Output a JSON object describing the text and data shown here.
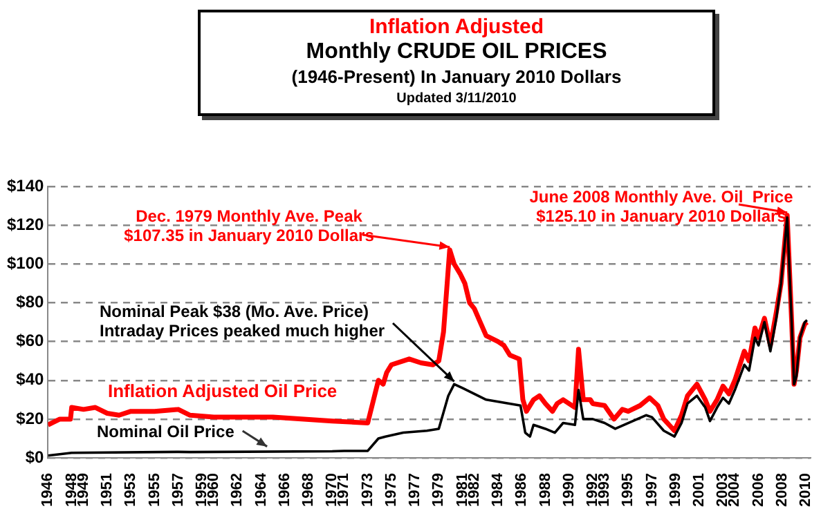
{
  "chart_data": {
    "type": "line",
    "title": "Inflation Adjusted\nMonthly CRUDE OIL PRICES",
    "subtitle": "(1946-Present) In January 2010 Dollars",
    "xlim": [
      1946,
      2010.4
    ],
    "xticks": [
      1946,
      1948,
      1949,
      1951,
      1953,
      1955,
      1957,
      1959,
      1960,
      1962,
      1964,
      1966,
      1968,
      1970,
      1971,
      1973,
      1975,
      1977,
      1979,
      1981,
      1982,
      1984,
      1986,
      1988,
      1990,
      1992,
      1993,
      1995,
      1997,
      1999,
      2001,
      2003,
      2004,
      2006,
      2008,
      2010
    ],
    "ylim": [
      0,
      140
    ],
    "yticks": [
      {
        "value": 0,
        "label": "$0"
      },
      {
        "value": 20,
        "label": "$20"
      },
      {
        "value": 40,
        "label": "$40"
      },
      {
        "value": 60,
        "label": "$60"
      },
      {
        "value": 80,
        "label": "$80"
      },
      {
        "value": 100,
        "label": "$100"
      },
      {
        "value": 120,
        "label": "$120"
      },
      {
        "value": 140,
        "label": "$140"
      }
    ],
    "grid": "y",
    "legend": false,
    "marker": "none",
    "line_style": "solid",
    "series": [
      {
        "name": "Inflation Adjusted Oil Price",
        "color": "#ff0000",
        "x": [
          1946,
          1947,
          1947.9,
          1948,
          1949,
          1950,
          1951,
          1952,
          1953,
          1955,
          1957,
          1958,
          1960,
          1965,
          1970,
          1973,
          1973.9,
          1974.3,
          1974.6,
          1975,
          1976.5,
          1977.5,
          1978.5,
          1979,
          1979.4,
          1979.92,
          1980.3,
          1980.8,
          1981.2,
          1981.6,
          1982,
          1982.5,
          1983,
          1984,
          1984.5,
          1985,
          1985.8,
          1986.1,
          1986.4,
          1987,
          1987.5,
          1988,
          1988.6,
          1989,
          1989.5,
          1990.5,
          1990.8,
          1991.2,
          1991.8,
          1992,
          1993,
          1993.8,
          1994.5,
          1995,
          1996,
          1996.8,
          1997.5,
          1998,
          1998.9,
          1999.5,
          2000,
          2000.8,
          2001.5,
          2001.9,
          2002.5,
          2003,
          2003.5,
          2004,
          2004.8,
          2005.2,
          2005.7,
          2006,
          2006.5,
          2007,
          2007.5,
          2007.9,
          2008.42,
          2008.8,
          2009,
          2009.2,
          2009.5,
          2009.9,
          2010.1
        ],
        "values": [
          17,
          20,
          20,
          26,
          25,
          26,
          23,
          22,
          24,
          24,
          25,
          22,
          21,
          21,
          19,
          18,
          40,
          38,
          44,
          48,
          51,
          49,
          48,
          50,
          65,
          107.35,
          100,
          95,
          90,
          80,
          77,
          70,
          63,
          60,
          58,
          53,
          51,
          30,
          24,
          30,
          32,
          28,
          24,
          28,
          30,
          26,
          56,
          30,
          30,
          28,
          27,
          20,
          25,
          24,
          27,
          31,
          27,
          20,
          14,
          22,
          32,
          38,
          30,
          24,
          30,
          37,
          33,
          40,
          55,
          50,
          67,
          62,
          72,
          58,
          75,
          90,
          125.1,
          70,
          38,
          45,
          62,
          69,
          70
        ]
      },
      {
        "name": "Nominal Oil Price",
        "color": "#000000",
        "x": [
          1946,
          1947,
          1948,
          1957,
          1958,
          1970,
          1971,
          1973,
          1973.9,
          1974.5,
          1976,
          1978,
          1979,
          1979.8,
          1980.3,
          1981,
          1982,
          1983,
          1985.9,
          1986.3,
          1986.7,
          1987,
          1988,
          1988.8,
          1989.5,
          1990.5,
          1990.8,
          1991.2,
          1992,
          1993,
          1993.9,
          1995,
          1996.5,
          1997,
          1998,
          1998.9,
          1999.5,
          2000,
          2000.8,
          2001.5,
          2001.9,
          2002.5,
          2003,
          2003.5,
          2004,
          2004.8,
          2005.2,
          2005.7,
          2006,
          2006.5,
          2007,
          2007.5,
          2007.9,
          2008.42,
          2008.8,
          2009,
          2009.2,
          2009.5,
          2009.9,
          2010.1
        ],
        "values": [
          1.2,
          1.9,
          2.6,
          3.1,
          3,
          3.4,
          3.6,
          3.6,
          10,
          11,
          13,
          14,
          15,
          32,
          38,
          36,
          33,
          30,
          27,
          13,
          11,
          17,
          15,
          13,
          18,
          17,
          35,
          20,
          20,
          18,
          15,
          18,
          22,
          21,
          14,
          11,
          18,
          28,
          32,
          26,
          19,
          26,
          31,
          28,
          35,
          48,
          45,
          62,
          58,
          70,
          55,
          72,
          90,
          124,
          70,
          38,
          42,
          62,
          70,
          71
        ]
      }
    ],
    "annotations": [
      {
        "text": "Dec. 1979 Monthly Ave. Peak\n$107.35 in January 2010 Dollars",
        "x": 1979.92,
        "y": 107.35
      },
      {
        "text": "Nominal Peak $38 (Mo. Ave. Price)\nIntraday Prices peaked much higher",
        "x": 1980.3,
        "y": 38
      },
      {
        "text": "June 2008 Monthly Ave. Oil  Price\n$125.10 in January 2010 Dollars",
        "x": 2008.42,
        "y": 125.1
      },
      "Updated 3/11/2010"
    ]
  }
}
